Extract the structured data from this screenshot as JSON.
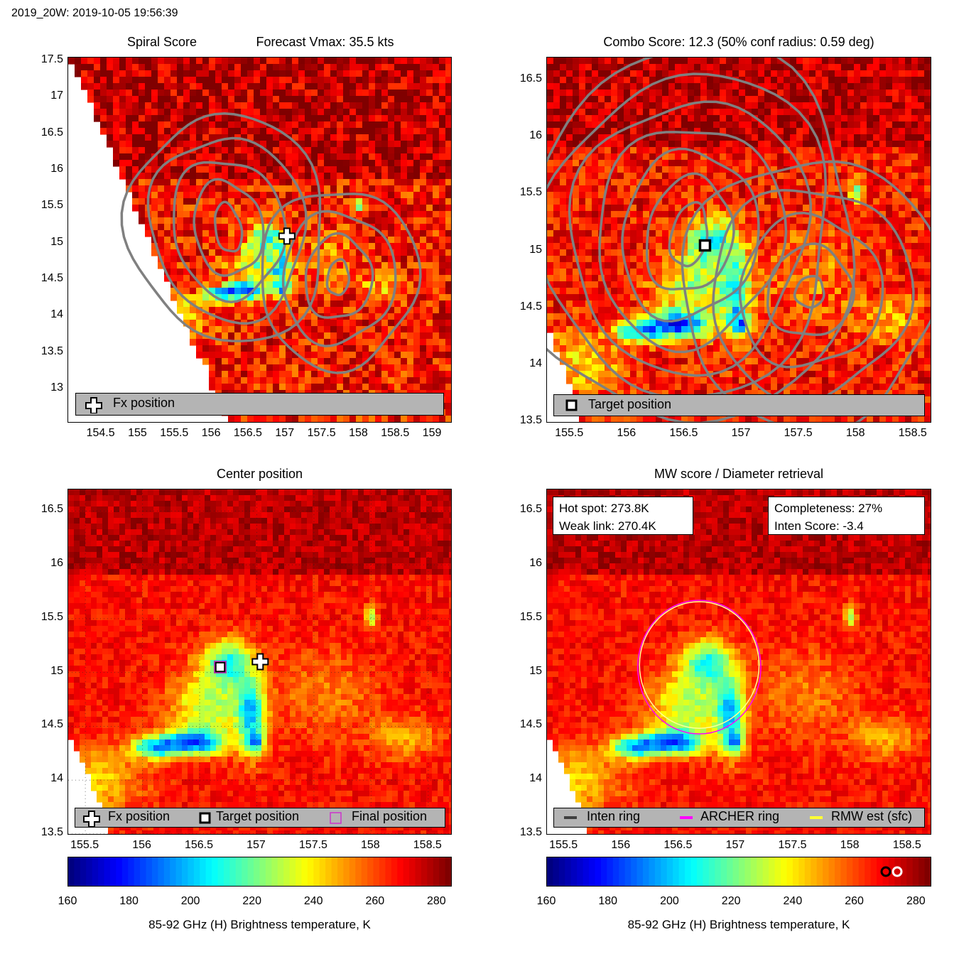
{
  "figure_title": "2019_20W: 2019-10-05 19:56:39",
  "panels": {
    "spiral": {
      "title_left": "Spiral Score",
      "title_right": "Forecast Vmax: 35.5 kts",
      "legend": {
        "fx": "Fx position"
      }
    },
    "combo": {
      "title": "Combo Score: 12.3  (50% conf radius: 0.59 deg)",
      "legend": {
        "target": "Target position"
      }
    },
    "center": {
      "title": "Center position",
      "legend": {
        "fx": "Fx position",
        "target": "Target position",
        "final": "Final position"
      }
    },
    "mw": {
      "title": "MW score / Diameter retrieval",
      "info_left": {
        "hot_spot": "Hot spot: 273.8K",
        "weak_link": "Weak link: 270.4K"
      },
      "info_right": {
        "completeness": "Completeness: 27%",
        "inten_score": "Inten Score: -3.4"
      },
      "legend": {
        "inten": "Inten ring",
        "archer": "ARCHER ring",
        "rmw": "RMW est (sfc)"
      }
    }
  },
  "colorbar": {
    "label": "85-92 GHz (H) Brightness temperature, K",
    "ticks": [
      "160",
      "180",
      "200",
      "220",
      "240",
      "260",
      "280"
    ],
    "range": [
      160,
      285
    ]
  },
  "colors": {
    "track_contour": "#808080",
    "archer_ring": "#ff00ff",
    "rmw_ring": "#ffff66",
    "inten_ring": "#404040",
    "legend_bg": "#b4b4b4"
  },
  "chart_data": [
    {
      "type": "heatmap",
      "title": "Spiral Score",
      "xlabel": "",
      "ylabel": "",
      "x_ticks": [
        "154.5",
        "155",
        "155.5",
        "156",
        "156.5",
        "157",
        "157.5",
        "158",
        "158.5",
        "159"
      ],
      "y_ticks": [
        "17.5",
        "17",
        "16.5",
        "16",
        "15.5",
        "15",
        "14.5",
        "14",
        "13.5",
        "13"
      ],
      "xlim": [
        154.05,
        159.25
      ],
      "ylim": [
        12.55,
        17.55
      ],
      "markers": [
        {
          "name": "Fx position",
          "lon": 157.02,
          "lat": 15.1
        }
      ]
    },
    {
      "type": "heatmap",
      "title": "Combo Score: 12.3  (50% conf radius: 0.59 deg)",
      "x_ticks": [
        "155.5",
        "156",
        "156.5",
        "157",
        "157.5",
        "158",
        "158.5"
      ],
      "y_ticks": [
        "16.5",
        "16",
        "15.5",
        "15",
        "14.5",
        "14",
        "13.5"
      ],
      "xlim": [
        155.3,
        158.65
      ],
      "ylim": [
        13.5,
        16.7
      ],
      "markers": [
        {
          "name": "Target position",
          "lon": 156.68,
          "lat": 15.05
        }
      ]
    },
    {
      "type": "heatmap",
      "title": "Center position",
      "x_ticks": [
        "155.5",
        "156",
        "156.5",
        "157",
        "157.5",
        "158",
        "158.5"
      ],
      "y_ticks": [
        "16.5",
        "16",
        "15.5",
        "15",
        "14.5",
        "14",
        "13.5"
      ],
      "xlim": [
        155.35,
        158.7
      ],
      "ylim": [
        13.5,
        16.7
      ],
      "markers": [
        {
          "name": "Fx position",
          "lon": 157.03,
          "lat": 15.1
        },
        {
          "name": "Target position",
          "lon": 156.68,
          "lat": 15.05
        },
        {
          "name": "Final position",
          "lon": 156.68,
          "lat": 15.05
        }
      ]
    },
    {
      "type": "heatmap",
      "title": "MW score / Diameter retrieval",
      "x_ticks": [
        "155.5",
        "156",
        "156.5",
        "157",
        "157.5",
        "158",
        "158.5"
      ],
      "y_ticks": [
        "16.5",
        "16",
        "15.5",
        "15",
        "14.5",
        "14",
        "13.5"
      ],
      "xlim": [
        155.35,
        158.7
      ],
      "ylim": [
        13.5,
        16.7
      ],
      "rings": [
        {
          "name": "ARCHER ring",
          "lon": 156.68,
          "lat": 15.05,
          "radius_deg": 0.64
        },
        {
          "name": "RMW est (sfc)",
          "lon": 156.68,
          "lat": 15.05,
          "radius_deg": 0.6
        }
      ]
    }
  ]
}
